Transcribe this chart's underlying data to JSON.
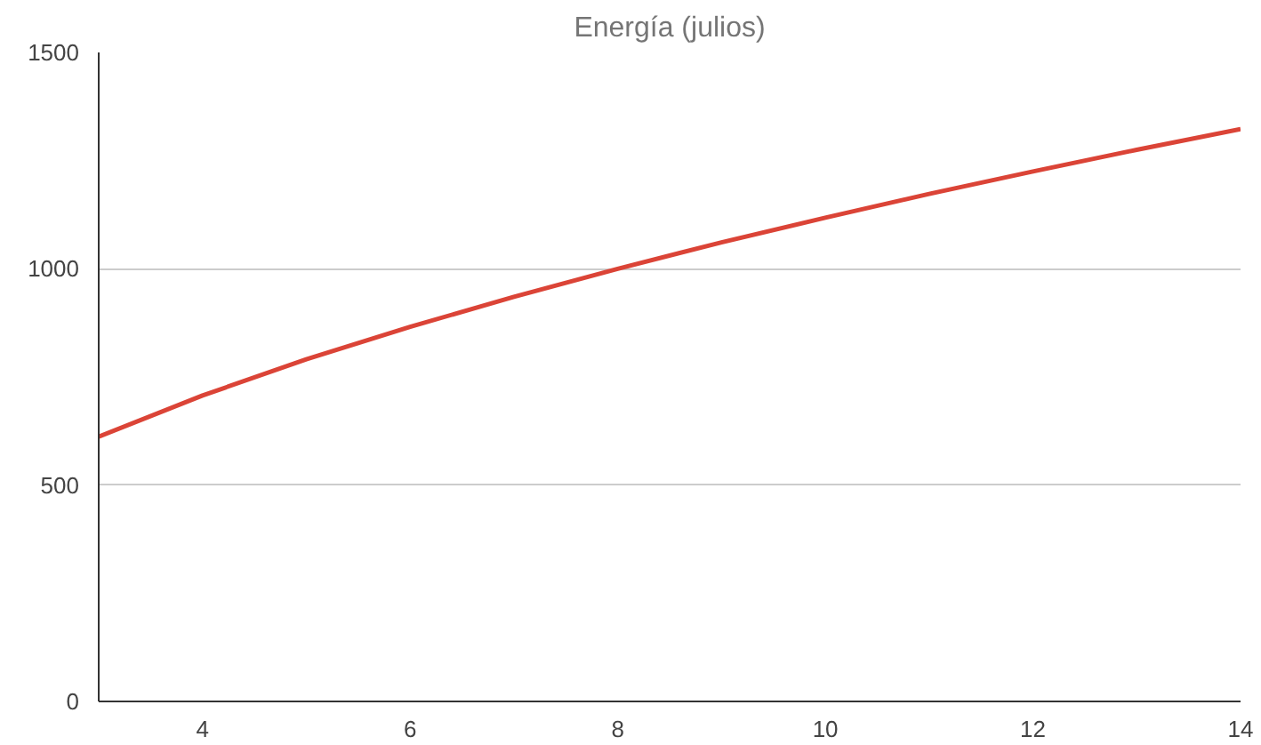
{
  "chart_data": {
    "type": "line",
    "title": "Energía (julios)",
    "x": [
      3,
      4,
      5,
      6,
      7,
      8,
      9,
      10,
      11,
      12,
      13,
      14
    ],
    "series": [
      {
        "color": "#db4437",
        "values": [
          612,
          707,
          791,
          866,
          935,
          1000,
          1061,
          1118,
          1173,
          1225,
          1275,
          1323
        ]
      }
    ],
    "xlim": [
      3,
      14
    ],
    "xticks": [
      4,
      6,
      8,
      10,
      12,
      14
    ],
    "ylim": [
      0,
      1500
    ],
    "yticks": [
      0,
      500,
      1000,
      1500
    ],
    "grid": "y",
    "marker": "none",
    "line_style": "solid"
  }
}
